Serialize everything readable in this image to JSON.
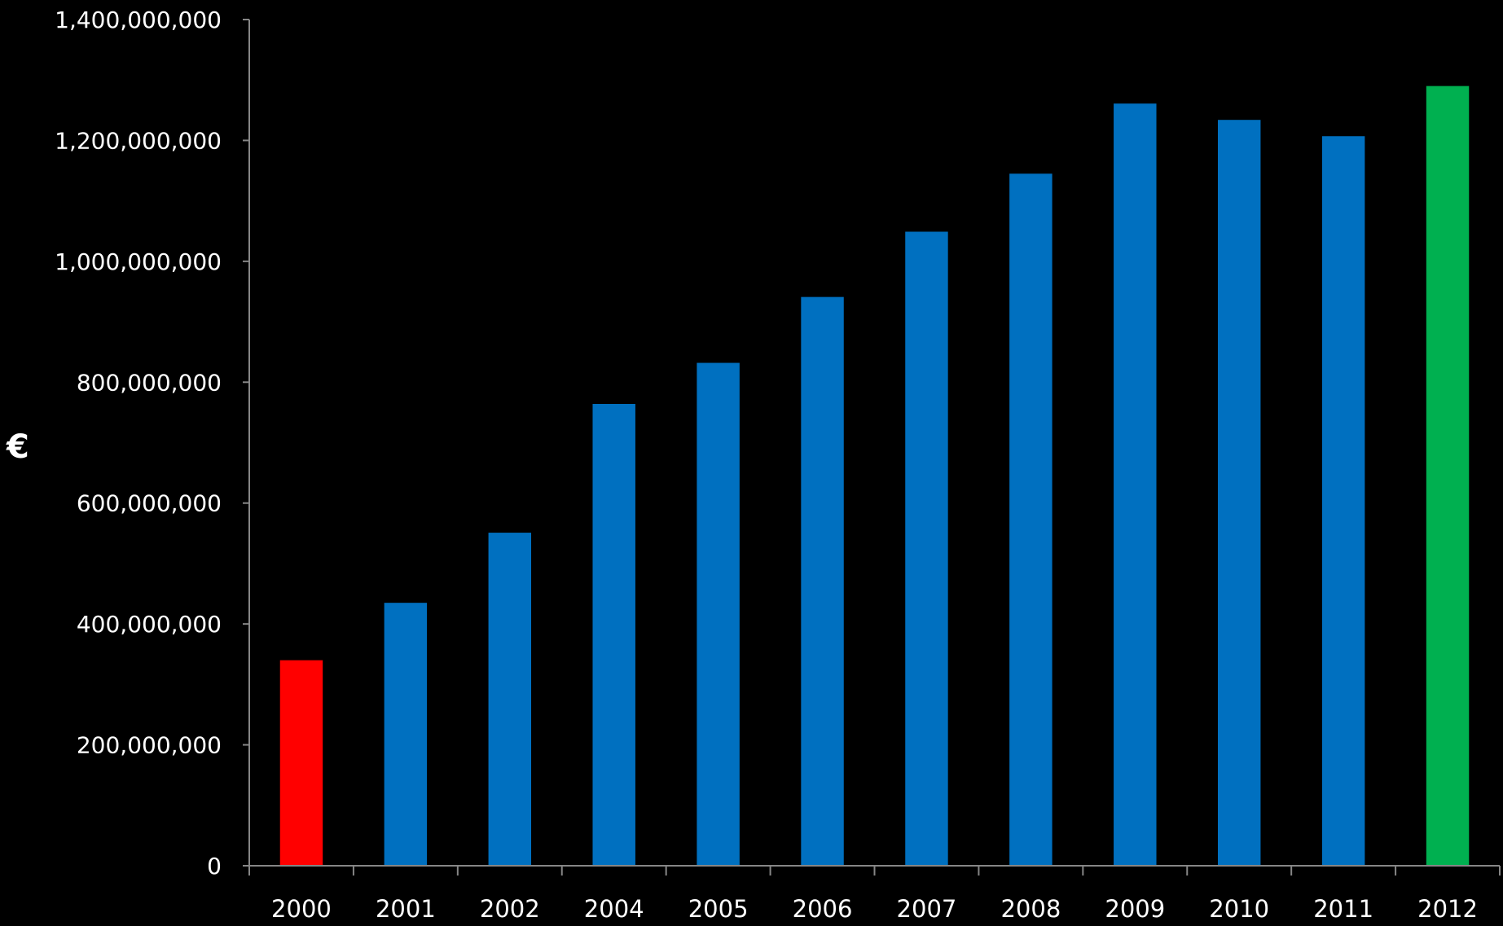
{
  "chart_data": {
    "type": "bar",
    "title": "",
    "xlabel": "",
    "ylabel": "€",
    "categories": [
      "2000",
      "2001",
      "2002",
      "2004",
      "2005",
      "2006",
      "2007",
      "2008",
      "2009",
      "2010",
      "2011",
      "2012"
    ],
    "values": [
      340000000,
      435000000,
      551000000,
      764000000,
      832000000,
      941000000,
      1049000000,
      1145000000,
      1261000000,
      1234000000,
      1207000000,
      1290000000
    ],
    "bar_colors": [
      "#ff0000",
      "#0070c0",
      "#0070c0",
      "#0070c0",
      "#0070c0",
      "#0070c0",
      "#0070c0",
      "#0070c0",
      "#0070c0",
      "#0070c0",
      "#0070c0",
      "#00b050"
    ],
    "ylim": [
      0,
      1400000000
    ],
    "yticks": [
      0,
      200000000,
      400000000,
      600000000,
      800000000,
      1000000000,
      1200000000,
      1400000000
    ],
    "ytick_labels": [
      "0",
      "200,000,000",
      "400,000,000",
      "600,000,000",
      "800,000,000",
      "1,000,000,000",
      "1,200,000,000",
      "1,400,000,000"
    ],
    "grid": false,
    "legend": "none",
    "background": "#000000",
    "axis_color": "#868686",
    "text_color": "#ffffff"
  }
}
